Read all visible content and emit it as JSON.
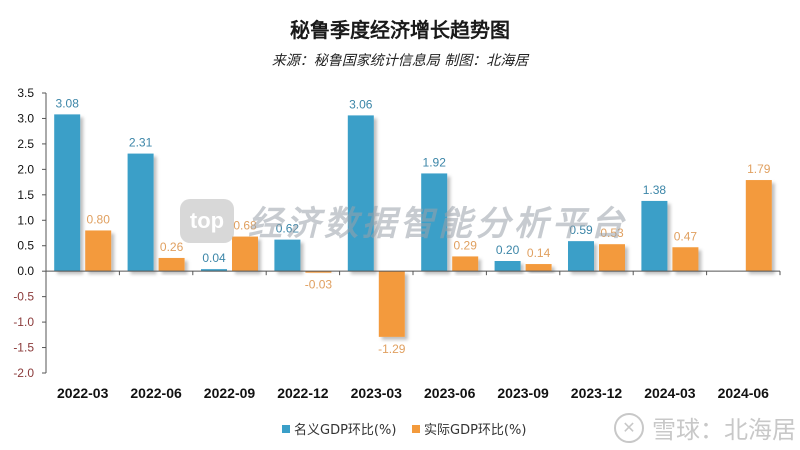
{
  "header": {
    "title": "秘鲁季度经济增长趋势图",
    "subtitle": "来源：秘鲁国家统计信息局 制图：北海居"
  },
  "watermark": {
    "center_logo": "top",
    "center_text": "经济数据智能分析平台",
    "corner_text": "雪球：北海居",
    "corner_icon": "snowball-logo-icon"
  },
  "colors": {
    "nominal": "#3A9FC8",
    "real": "#F39A3C",
    "nominal_label": "#3C86A8",
    "real_label": "#E0A060",
    "negative_tick": "#8B3A3A"
  },
  "chart_data": {
    "type": "bar",
    "title": "秘鲁季度经济增长趋势图",
    "subtitle": "来源：秘鲁国家统计信息局 制图：北海居",
    "xlabel": "",
    "ylabel": "",
    "ylim": [
      -2.0,
      3.5
    ],
    "yticks": [
      "3.5",
      "3.0",
      "2.5",
      "2.0",
      "1.5",
      "1.0",
      "0.5",
      "0.0",
      "-0.5",
      "-1.0",
      "-1.5",
      "-2.0"
    ],
    "grid": false,
    "legend_position": "bottom",
    "categories": [
      "2022-03",
      "2022-06",
      "2022-09",
      "2022-12",
      "2023-03",
      "2023-06",
      "2023-09",
      "2023-12",
      "2024-03",
      "2024-06"
    ],
    "series": [
      {
        "name": "名义GDP环比(%)",
        "values": [
          3.08,
          2.31,
          0.04,
          0.62,
          3.06,
          1.92,
          0.2,
          0.59,
          1.38,
          null
        ]
      },
      {
        "name": "实际GDP环比(%)",
        "values": [
          0.8,
          0.26,
          0.68,
          -0.03,
          -1.29,
          0.29,
          0.14,
          0.53,
          0.47,
          1.79
        ]
      }
    ]
  }
}
